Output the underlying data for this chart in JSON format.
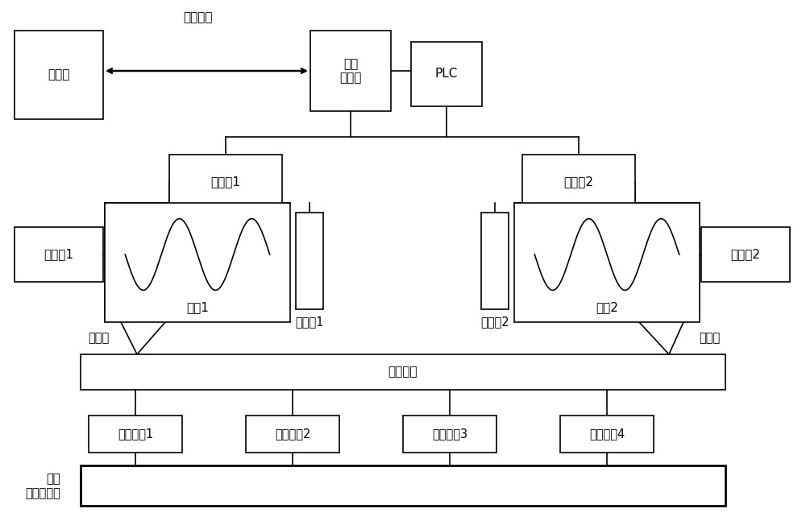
{
  "bg_color": "#ffffff",
  "line_color": "#000000",
  "lw": 1.2,
  "figsize": [
    10.0,
    6.42
  ],
  "dpi": 100,
  "labels": {
    "kongzhi_zhiling": "控制指令",
    "yaokongqi": "遥控器",
    "yaokong_jieshouqi": "遥控\n接收器",
    "plc": "PLC",
    "bianpinqi1": "变频器1",
    "bianpinqi2": "变频器2",
    "bianmaq1": "编码器1",
    "bianmaq2": "编码器2",
    "dianji1": "电机1",
    "dianji2": "电机2",
    "zhidongqi1": "制动器1",
    "zhidongqi2": "制动器2",
    "gangsiSheng_left": "钢丝绳",
    "gangsiSheng_right": "钢丝绳",
    "dianciZhujia": "电磁挂架",
    "dianci1": "电磁吸盘1",
    "dianci2": "电磁吸盘2",
    "dianci3": "电磁吸盘3",
    "dianci4": "电磁吸盘4",
    "fuzai_line1": "负载",
    "fuzai_line2": "（长钢板）"
  }
}
